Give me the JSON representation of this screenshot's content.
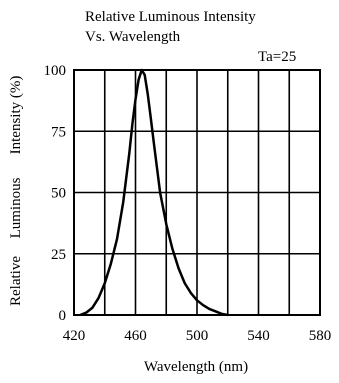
{
  "chart_data": {
    "type": "line",
    "title": [
      "Relative Luminous Intensity",
      "Vs. Wavelength"
    ],
    "annotation": "Ta=25",
    "xlabel": "Wavelength (nm)",
    "ylabel": [
      "Relative",
      "Luminous",
      "Intensity (%)"
    ],
    "xlim": [
      420,
      580
    ],
    "ylim": [
      0,
      100
    ],
    "x_ticks": [
      420,
      460,
      500,
      540,
      580
    ],
    "y_ticks": [
      0,
      25,
      50,
      75,
      100
    ],
    "x_gridlines": [
      420,
      440,
      460,
      480,
      500,
      520,
      540,
      560,
      580
    ],
    "y_gridlines": [
      0,
      25,
      50,
      75,
      100
    ],
    "grid": true,
    "series": [
      {
        "color": "#000000",
        "x": [
          424,
          428,
          432,
          436,
          440,
          444,
          448,
          452,
          456,
          458,
          460,
          462,
          464,
          466,
          468,
          470,
          472,
          474,
          476,
          480,
          484,
          488,
          492,
          496,
          500,
          504,
          508,
          512,
          516,
          520
        ],
        "y": [
          0,
          1,
          3,
          7,
          13,
          21,
          31,
          46,
          66,
          78,
          88,
          96,
          100,
          98,
          90,
          80,
          70,
          60,
          50,
          37,
          27,
          19,
          13,
          9,
          6,
          4,
          2.5,
          1.5,
          0.5,
          0
        ]
      }
    ]
  }
}
